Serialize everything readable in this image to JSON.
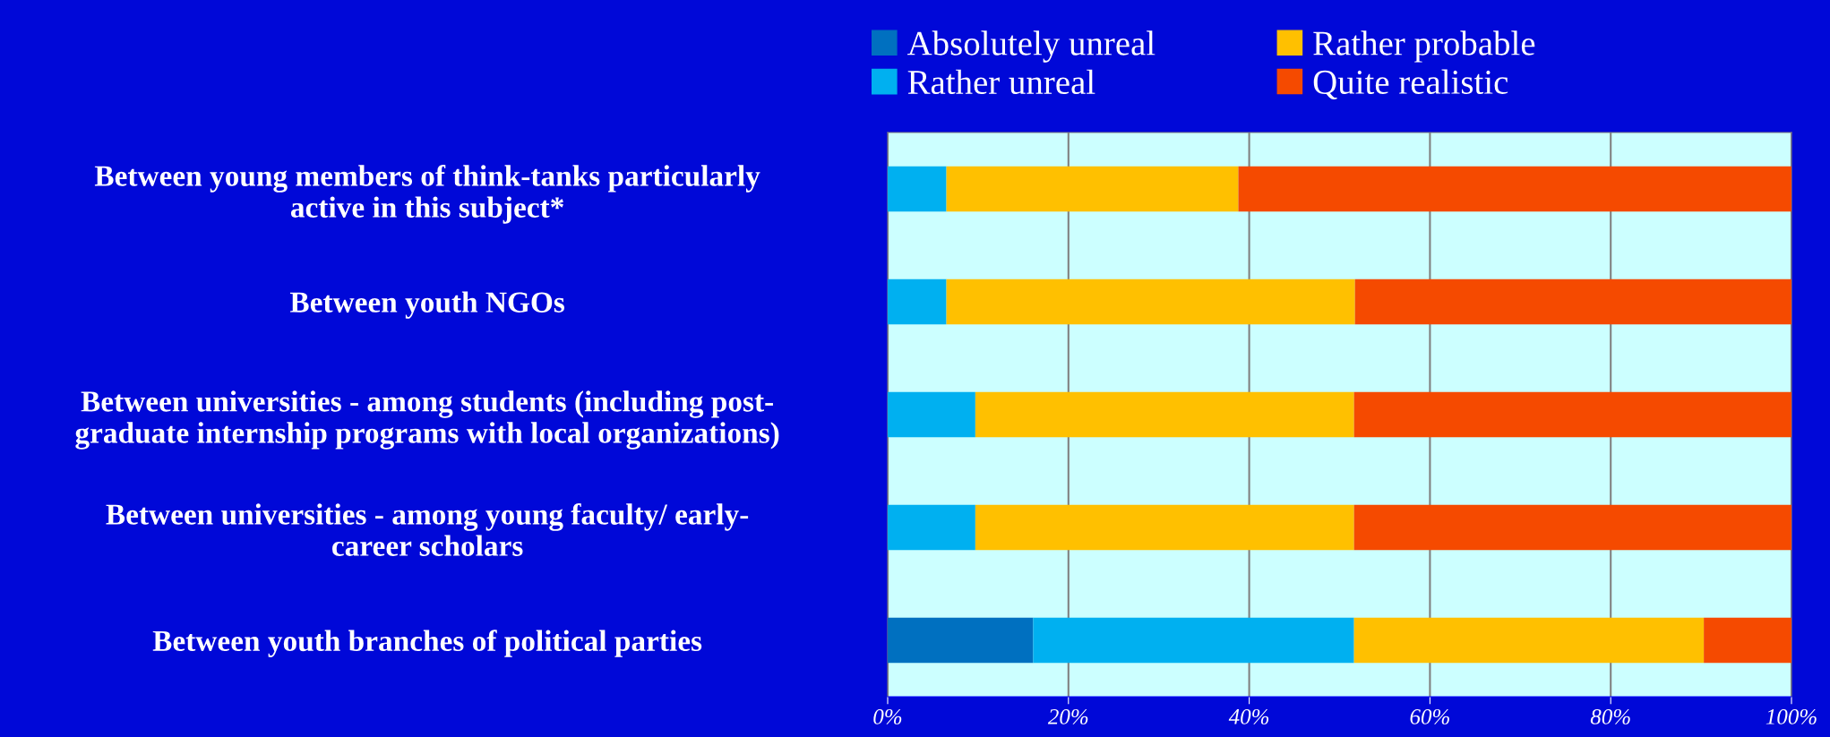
{
  "chart_data": {
    "type": "bar",
    "orientation": "horizontal",
    "stacked": true,
    "categories": [
      "Between young members of think-tanks particularly\nactive in this subject*",
      "Between youth NGOs",
      "Between universities - among students (including post-\ngraduate internship programs with local organizations)",
      "Between universities - among young faculty/ early-\ncareer scholars",
      "Between youth branches of political parties"
    ],
    "series": [
      {
        "name": "Absolutely unreal",
        "color": "#0070c0",
        "values": [
          0,
          0,
          0,
          0,
          16.1
        ]
      },
      {
        "name": "Rather unreal",
        "color": "#00b0f0",
        "values": [
          6.5,
          6.5,
          9.7,
          9.7,
          35.5
        ]
      },
      {
        "name": "Rather probable",
        "color": "#ffc000",
        "values": [
          32.3,
          45.2,
          41.9,
          41.9,
          38.7
        ]
      },
      {
        "name": "Quite realistic",
        "color": "#f54a00",
        "values": [
          61.2,
          48.3,
          48.4,
          48.4,
          9.7
        ]
      }
    ],
    "xlim": [
      0,
      100
    ],
    "xticks": [
      {
        "value": 0,
        "label": "0%"
      },
      {
        "value": 20,
        "label": "20%"
      },
      {
        "value": 40,
        "label": "40%"
      },
      {
        "value": 60,
        "label": "60%"
      },
      {
        "value": 80,
        "label": "80%"
      },
      {
        "value": 100,
        "label": "100%"
      }
    ],
    "grid": "x",
    "legend": "top"
  }
}
